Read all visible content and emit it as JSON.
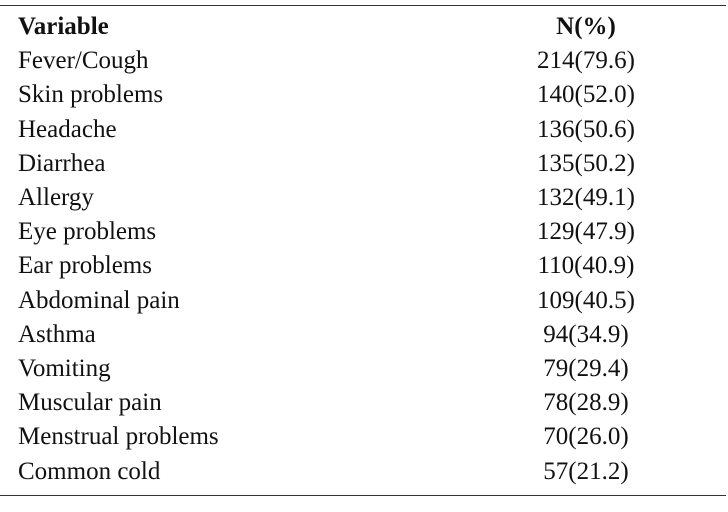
{
  "table": {
    "headers": {
      "variable": "Variable",
      "n_pct": "N(%)"
    },
    "rows": [
      {
        "variable": "Fever/Cough",
        "value": "214(79.6)"
      },
      {
        "variable": "Skin problems",
        "value": "140(52.0)"
      },
      {
        "variable": "Headache",
        "value": "136(50.6)"
      },
      {
        "variable": "Diarrhea",
        "value": "135(50.2)"
      },
      {
        "variable": "Allergy",
        "value": "132(49.1)"
      },
      {
        "variable": "Eye problems",
        "value": "129(47.9)"
      },
      {
        "variable": "Ear problems",
        "value": "110(40.9)"
      },
      {
        "variable": "Abdominal pain",
        "value": "109(40.5)"
      },
      {
        "variable": "Asthma",
        "value": "94(34.9)"
      },
      {
        "variable": "Vomiting",
        "value": "79(29.4)"
      },
      {
        "variable": "Muscular pain",
        "value": "78(28.9)"
      },
      {
        "variable": "Menstrual problems",
        "value": "70(26.0)"
      },
      {
        "variable": "Common cold",
        "value": "57(21.2)"
      }
    ]
  }
}
